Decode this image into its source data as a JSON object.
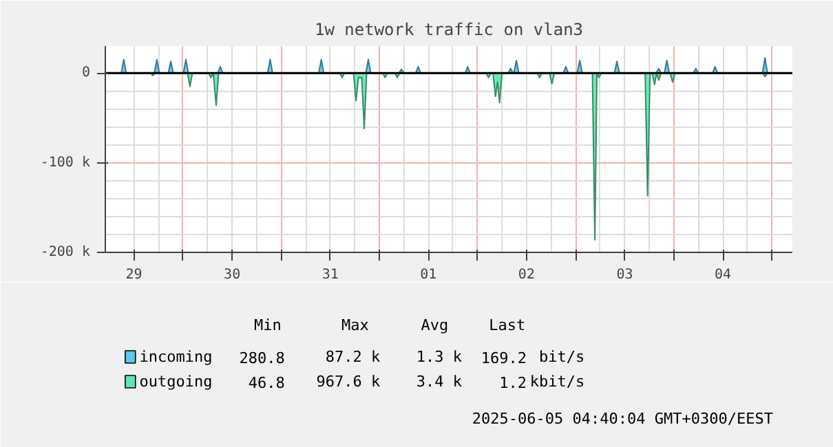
{
  "chart_data": {
    "type": "area",
    "title": "1w network traffic on vlan3",
    "xlim": [
      "2025-05-29T05:00",
      "2025-06-05T05:00"
    ],
    "ylim": [
      -200000,
      30000
    ],
    "xticks": [
      {
        "value": "2025-05-29T12:00",
        "label": "29"
      },
      {
        "value": "2025-05-30T00:00",
        "label": null
      },
      {
        "value": "2025-05-30T12:00",
        "label": "30"
      },
      {
        "value": "2025-05-31T00:00",
        "label": null
      },
      {
        "value": "2025-05-31T12:00",
        "label": "31"
      },
      {
        "value": "2025-06-01T00:00",
        "label": null
      },
      {
        "value": "2025-06-01T12:00",
        "label": "01"
      },
      {
        "value": "2025-06-02T00:00",
        "label": null
      },
      {
        "value": "2025-06-02T12:00",
        "label": "02"
      },
      {
        "value": "2025-06-03T00:00",
        "label": null
      },
      {
        "value": "2025-06-03T12:00",
        "label": "03"
      },
      {
        "value": "2025-06-04T00:00",
        "label": null
      },
      {
        "value": "2025-06-04T12:00",
        "label": "04"
      },
      {
        "value": "2025-06-05T00:00",
        "label": null
      }
    ],
    "yticks": [
      {
        "value": 0,
        "label": "0"
      },
      {
        "value": -100000,
        "label": "-100 k"
      },
      {
        "value": -200000,
        "label": "-200 k"
      }
    ],
    "grid": true,
    "legend": "bottom",
    "series": [
      {
        "name": "incoming",
        "color": "#5bc8f0",
        "x": [
          "2025-05-29T05:00",
          "2025-05-29T08:54",
          "2025-05-29T09:30",
          "2025-05-29T10:06",
          "2025-05-29T17:00",
          "2025-05-29T17:36",
          "2025-05-29T18:12",
          "2025-05-29T20:24",
          "2025-05-29T21:00",
          "2025-05-29T21:36",
          "2025-05-30T00:06",
          "2025-05-30T00:42",
          "2025-05-30T01:18",
          "2025-05-30T08:30",
          "2025-05-30T09:06",
          "2025-05-30T09:42",
          "2025-05-30T20:42",
          "2025-05-30T21:18",
          "2025-05-30T21:54",
          "2025-05-31T09:12",
          "2025-05-31T09:48",
          "2025-05-31T10:24",
          "2025-05-31T20:42",
          "2025-05-31T21:18",
          "2025-05-31T21:54",
          "2025-06-01T04:48",
          "2025-06-01T05:24",
          "2025-06-01T06:00",
          "2025-06-01T08:54",
          "2025-06-01T09:30",
          "2025-06-01T10:06",
          "2025-06-01T21:00",
          "2025-06-01T21:36",
          "2025-06-01T22:12",
          "2025-06-02T07:30",
          "2025-06-02T08:06",
          "2025-06-02T08:42",
          "2025-06-02T08:54",
          "2025-06-02T09:30",
          "2025-06-02T10:06",
          "2025-06-02T21:00",
          "2025-06-02T21:36",
          "2025-06-02T22:12",
          "2025-06-03T00:24",
          "2025-06-03T01:00",
          "2025-06-03T01:36",
          "2025-06-03T09:30",
          "2025-06-03T10:06",
          "2025-06-03T10:42",
          "2025-06-03T19:42",
          "2025-06-03T20:18",
          "2025-06-03T20:54",
          "2025-06-03T21:42",
          "2025-06-03T22:18",
          "2025-06-03T22:54",
          "2025-06-04T04:48",
          "2025-06-04T05:24",
          "2025-06-04T06:00",
          "2025-06-04T09:30",
          "2025-06-04T10:06",
          "2025-06-04T10:42",
          "2025-06-04T21:42",
          "2025-06-04T22:18",
          "2025-06-04T22:54",
          "2025-06-05T05:00"
        ],
        "values": [
          0,
          0,
          15000,
          0,
          0,
          15000,
          0,
          0,
          13000,
          0,
          0,
          15000,
          0,
          0,
          7000,
          0,
          0,
          15000,
          0,
          0,
          15000,
          0,
          0,
          15000,
          0,
          0,
          4000,
          0,
          0,
          7000,
          0,
          0,
          7000,
          0,
          0,
          5000,
          0,
          0,
          14000,
          0,
          0,
          7000,
          0,
          0,
          14000,
          0,
          0,
          13000,
          0,
          0,
          5000,
          0,
          0,
          14000,
          0,
          0,
          5000,
          0,
          0,
          7000,
          0,
          0,
          17000,
          0,
          0
        ]
      },
      {
        "name": "outgoing",
        "color": "#5ee8b0",
        "x": [
          "2025-05-29T05:00",
          "2025-05-29T16:00",
          "2025-05-29T16:36",
          "2025-05-29T17:12",
          "2025-05-30T01:06",
          "2025-05-30T01:42",
          "2025-05-30T02:18",
          "2025-05-30T06:12",
          "2025-05-30T06:48",
          "2025-05-30T07:24",
          "2025-05-30T08:06",
          "2025-05-30T08:42",
          "2025-05-31T14:18",
          "2025-05-31T14:54",
          "2025-05-31T15:30",
          "2025-05-31T17:42",
          "2025-05-31T18:18",
          "2025-05-31T18:54",
          "2025-05-31T19:42",
          "2025-05-31T20:18",
          "2025-05-31T20:54",
          "2025-06-01T00:48",
          "2025-06-01T01:24",
          "2025-06-01T02:00",
          "2025-06-01T03:48",
          "2025-06-01T04:24",
          "2025-06-01T05:00",
          "2025-06-02T02:06",
          "2025-06-02T02:42",
          "2025-06-02T03:18",
          "2025-06-02T03:48",
          "2025-06-02T04:24",
          "2025-06-02T04:54",
          "2025-06-02T05:24",
          "2025-06-02T06:00",
          "2025-06-02T14:36",
          "2025-06-02T15:12",
          "2025-06-02T15:48",
          "2025-06-02T17:36",
          "2025-06-02T18:12",
          "2025-06-02T18:48",
          "2025-06-03T04:06",
          "2025-06-03T04:42",
          "2025-06-03T05:12",
          "2025-06-03T05:42",
          "2025-06-03T06:18",
          "2025-06-03T17:00",
          "2025-06-03T17:36",
          "2025-06-03T18:12",
          "2025-06-03T18:42",
          "2025-06-03T19:18",
          "2025-06-03T19:48",
          "2025-06-03T20:18",
          "2025-06-03T20:54",
          "2025-06-03T23:06",
          "2025-06-03T23:42",
          "2025-06-04T00:18",
          "2025-06-04T21:42",
          "2025-06-04T22:18",
          "2025-06-04T22:54",
          "2025-06-05T05:00"
        ],
        "values": [
          0,
          0,
          -3000,
          0,
          0,
          -15000,
          0,
          0,
          -5000,
          0,
          -36000,
          0,
          0,
          -5000,
          0,
          0,
          -31000,
          -5000,
          -5000,
          -62000,
          0,
          0,
          -5000,
          0,
          0,
          -5000,
          0,
          0,
          -5000,
          0,
          0,
          -26000,
          -10000,
          -33000,
          0,
          0,
          -5000,
          0,
          0,
          -12000,
          0,
          0,
          -186000,
          0,
          -5000,
          0,
          0,
          -137000,
          0,
          0,
          -13000,
          0,
          -8000,
          0,
          0,
          -10000,
          0,
          0,
          -4000,
          0,
          0
        ]
      }
    ],
    "annotations": [
      "Min",
      "Max",
      "Avg",
      "Last",
      "280.8",
      "87.2 k",
      "1.3 k",
      "169.2",
      "bit/s",
      "46.8",
      "967.6 k",
      "3.4 k",
      "1.2",
      "kbit/s",
      "2025-06-05 04:40:04 GMT+0300/EEST"
    ]
  }
}
